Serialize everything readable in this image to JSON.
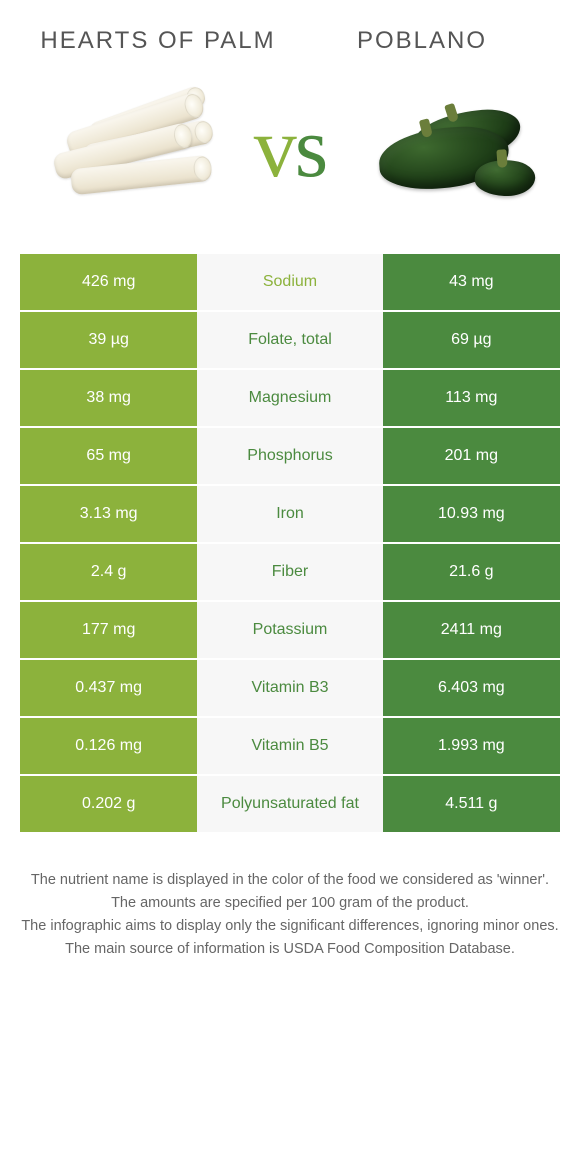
{
  "food_a": {
    "name": "Hearts of Palm",
    "color": "#8cb23c"
  },
  "food_b": {
    "name": "Poblano",
    "color": "#4b8a3f"
  },
  "vs": {
    "label": "vs",
    "color_a": "#8cb23c",
    "color_b": "#4b8a3f"
  },
  "table": {
    "label_fontsize": 16,
    "value_fontsize": 16,
    "rows": [
      {
        "nutrient": "Sodium",
        "a": "426 mg",
        "b": "43 mg",
        "winner": "a"
      },
      {
        "nutrient": "Folate, total",
        "a": "39 µg",
        "b": "69 µg",
        "winner": "b"
      },
      {
        "nutrient": "Magnesium",
        "a": "38 mg",
        "b": "113 mg",
        "winner": "b"
      },
      {
        "nutrient": "Phosphorus",
        "a": "65 mg",
        "b": "201 mg",
        "winner": "b"
      },
      {
        "nutrient": "Iron",
        "a": "3.13 mg",
        "b": "10.93 mg",
        "winner": "b"
      },
      {
        "nutrient": "Fiber",
        "a": "2.4 g",
        "b": "21.6 g",
        "winner": "b"
      },
      {
        "nutrient": "Potassium",
        "a": "177 mg",
        "b": "2411 mg",
        "winner": "b"
      },
      {
        "nutrient": "Vitamin B3",
        "a": "0.437 mg",
        "b": "6.403 mg",
        "winner": "b"
      },
      {
        "nutrient": "Vitamin B5",
        "a": "0.126 mg",
        "b": "1.993 mg",
        "winner": "b"
      },
      {
        "nutrient": "Polyunsaturated fat",
        "a": "0.202 g",
        "b": "4.511 g",
        "winner": "b"
      }
    ]
  },
  "notes": [
    "The nutrient name is displayed in the color of the food we considered as 'winner'.",
    "The amounts are specified per 100 gram of the product.",
    "The infographic aims to display only the significant differences, ignoring minor ones.",
    "The main source of information is USDA Food Composition Database."
  ]
}
